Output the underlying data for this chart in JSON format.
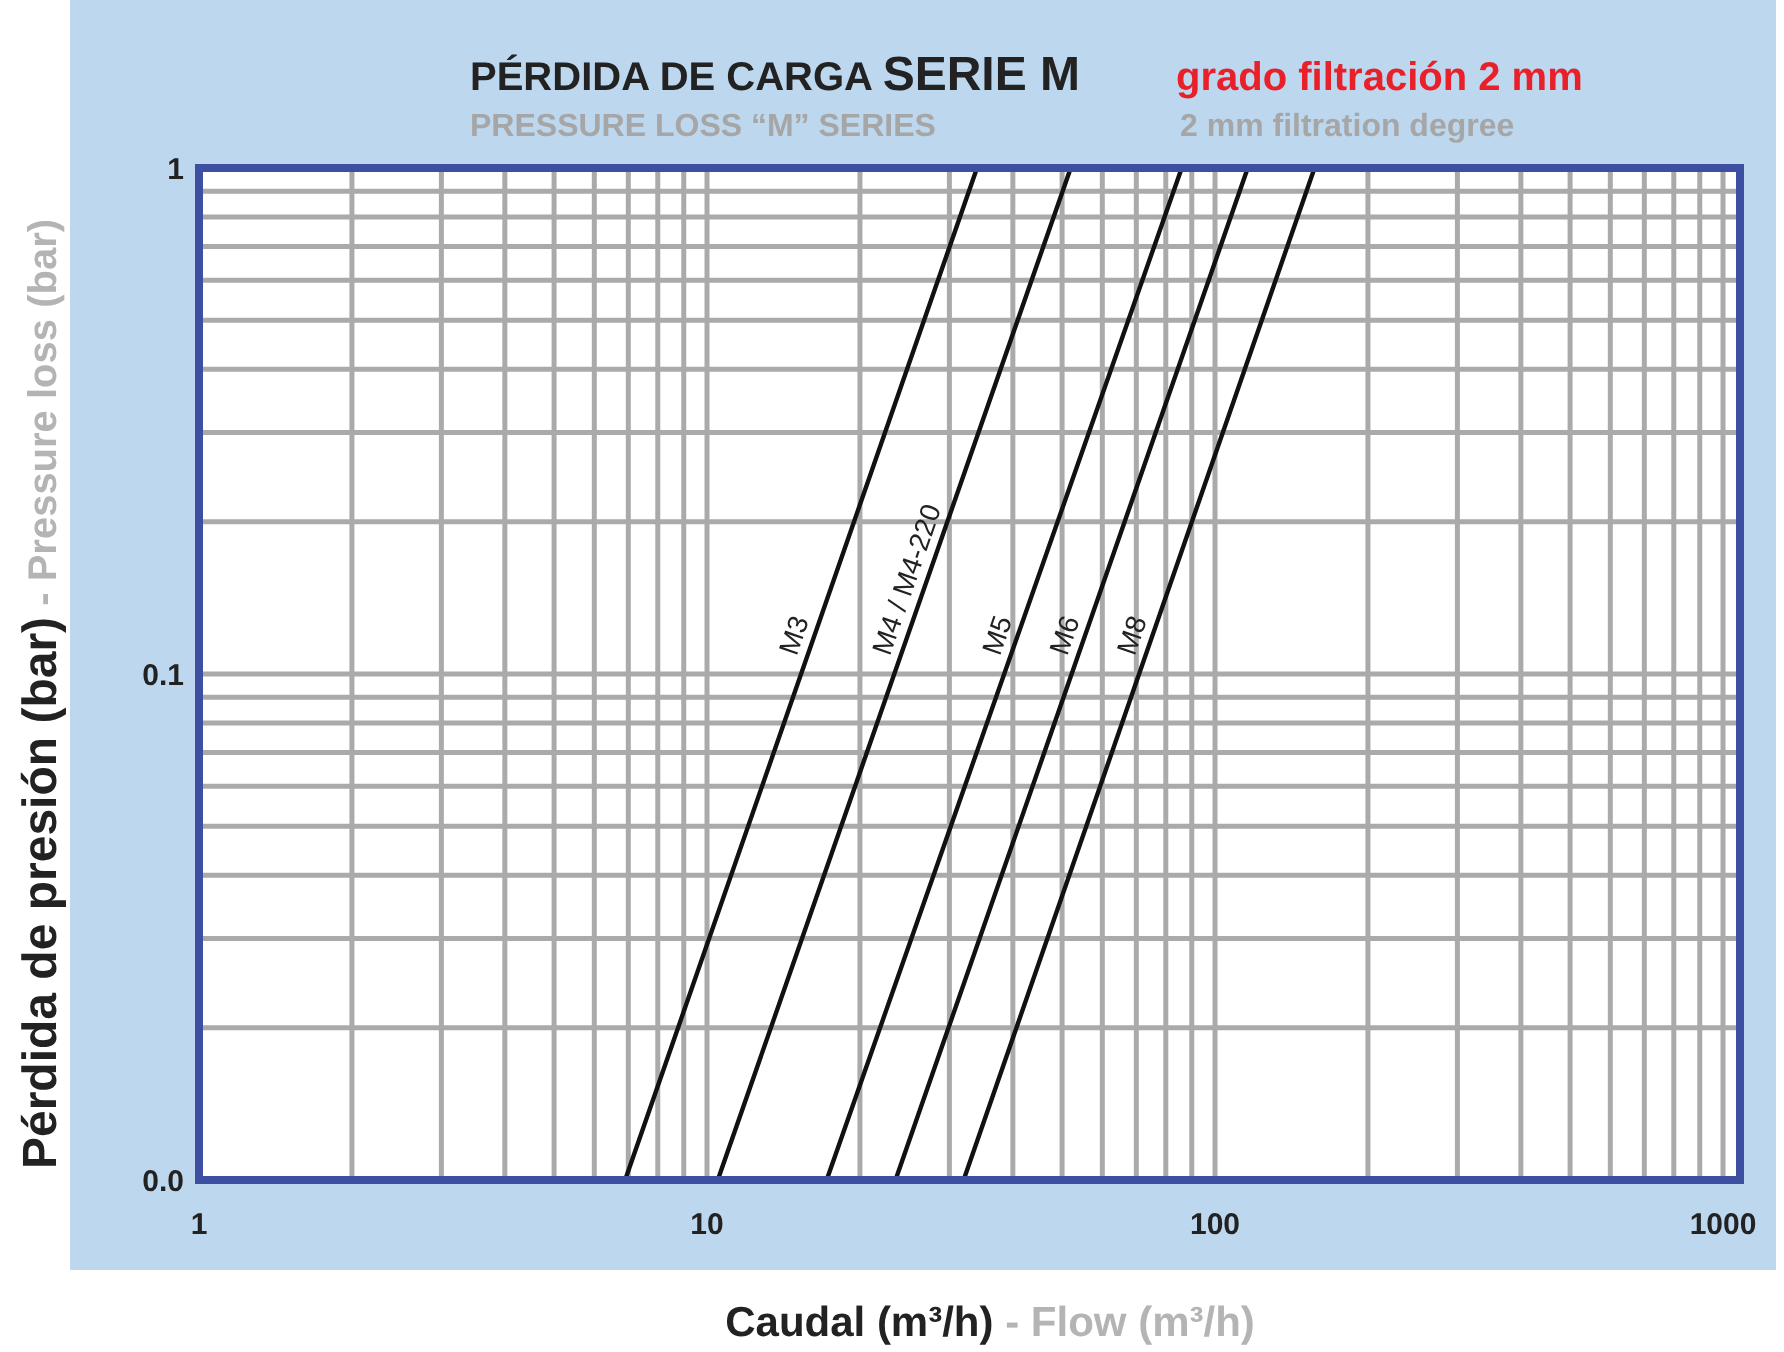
{
  "chart_data": {
    "type": "line",
    "title": "PÉRDIDA DE CARGA SERIE M",
    "subtitle": "PRESSURE LOSS “M” SERIES",
    "annotations": [
      "grado filtración 2 mm",
      "2 mm filtration degree"
    ],
    "xlabel": "Caudal (m³/h) - Flow (m³/h)",
    "ylabel": "Pérdida de presión (bar) - Pressure loss (bar)",
    "log": "xy",
    "grid": true,
    "xlim": [
      1,
      1080
    ],
    "ylim": [
      0.01,
      1
    ],
    "xticks": [
      1,
      {
        "value": 2,
        "label": null
      },
      {
        "value": 3,
        "label": null
      },
      {
        "value": 4,
        "label": null
      },
      {
        "value": 5,
        "label": null
      },
      {
        "value": 6,
        "label": null
      },
      {
        "value": 7,
        "label": null
      },
      {
        "value": 8,
        "label": null
      },
      {
        "value": 9,
        "label": null
      },
      10,
      {
        "value": 20,
        "label": null
      },
      {
        "value": 30,
        "label": null
      },
      {
        "value": 40,
        "label": null
      },
      {
        "value": 50,
        "label": null
      },
      {
        "value": 60,
        "label": null
      },
      {
        "value": 70,
        "label": null
      },
      {
        "value": 80,
        "label": null
      },
      {
        "value": 90,
        "label": null
      },
      100,
      {
        "value": 200,
        "label": null
      },
      {
        "value": 300,
        "label": null
      },
      {
        "value": 400,
        "label": null
      },
      {
        "value": 500,
        "label": null
      },
      {
        "value": 600,
        "label": null
      },
      {
        "value": 700,
        "label": null
      },
      {
        "value": 800,
        "label": null
      },
      {
        "value": 900,
        "label": null
      },
      1000
    ],
    "yticks": [
      {
        "value": 0.01,
        "label": "0.0"
      },
      {
        "value": 0.02,
        "label": null
      },
      {
        "value": 0.03,
        "label": null
      },
      {
        "value": 0.04,
        "label": null
      },
      {
        "value": 0.05,
        "label": null
      },
      {
        "value": 0.06,
        "label": null
      },
      {
        "value": 0.07,
        "label": null
      },
      {
        "value": 0.08,
        "label": null
      },
      {
        "value": 0.09,
        "label": null
      },
      0.1,
      {
        "value": 0.2,
        "label": null
      },
      {
        "value": 0.3,
        "label": null
      },
      {
        "value": 0.4,
        "label": null
      },
      {
        "value": 0.5,
        "label": null
      },
      {
        "value": 0.6,
        "label": null
      },
      {
        "value": 0.7,
        "label": null
      },
      {
        "value": 0.8,
        "label": null
      },
      {
        "value": 0.9,
        "label": null
      },
      1
    ],
    "series": [
      {
        "name": "M3",
        "color": "#111111",
        "x": [
          6.9,
          34
        ],
        "values": [
          0.01,
          1
        ]
      },
      {
        "name": "M4 / M4-220",
        "color": "#111111",
        "x": [
          10.5,
          52
        ],
        "values": [
          0.01,
          1
        ]
      },
      {
        "name": "M5",
        "color": "#111111",
        "x": [
          17.2,
          86
        ],
        "values": [
          0.01,
          1
        ]
      },
      {
        "name": "M6",
        "color": "#111111",
        "x": [
          23.5,
          116
        ],
        "values": [
          0.01,
          1
        ]
      },
      {
        "name": "M8",
        "color": "#111111",
        "x": [
          32,
          157
        ],
        "values": [
          0.01,
          1
        ]
      }
    ]
  }
}
